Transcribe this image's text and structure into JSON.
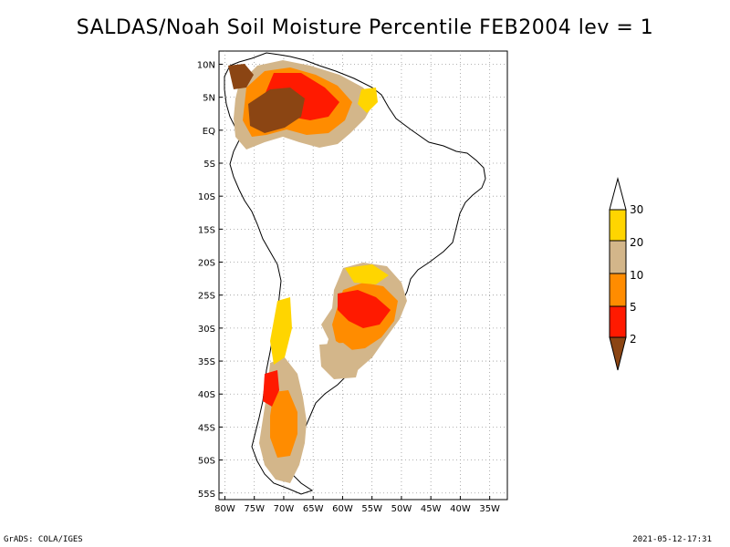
{
  "title": "SALDAS/Noah Soil Moisture Percentile FEB2004 lev = 1",
  "map": {
    "lat_labels": [
      "10N",
      "5N",
      "EQ",
      "5S",
      "10S",
      "15S",
      "20S",
      "25S",
      "30S",
      "35S",
      "40S",
      "45S",
      "50S",
      "55S"
    ],
    "lat_values": [
      10,
      5,
      0,
      -5,
      -10,
      -15,
      -20,
      -25,
      -30,
      -35,
      -40,
      -45,
      -50,
      -55
    ],
    "lon_labels": [
      "80W",
      "75W",
      "70W",
      "65W",
      "60W",
      "55W",
      "50W",
      "45W",
      "40W",
      "35W"
    ],
    "lon_values": [
      -80,
      -75,
      -70,
      -65,
      -60,
      -55,
      -50,
      -45,
      -40,
      -35
    ],
    "extent": {
      "lon_min": -81,
      "lon_max": -32,
      "lat_min": -56,
      "lat_max": 12
    }
  },
  "legend": {
    "labels": [
      "30",
      "20",
      "10",
      "5",
      "2"
    ],
    "colors": {
      "above_30": "#ffffff",
      "20_30": "#ffd500",
      "10_20": "#d3b68a",
      "5_10": "#ff8c00",
      "2_5": "#ff1a00",
      "below_2": "#8b4513"
    }
  },
  "footer": {
    "left": "GrADS: COLA/IGES",
    "right": "2021-05-12-17:31"
  }
}
